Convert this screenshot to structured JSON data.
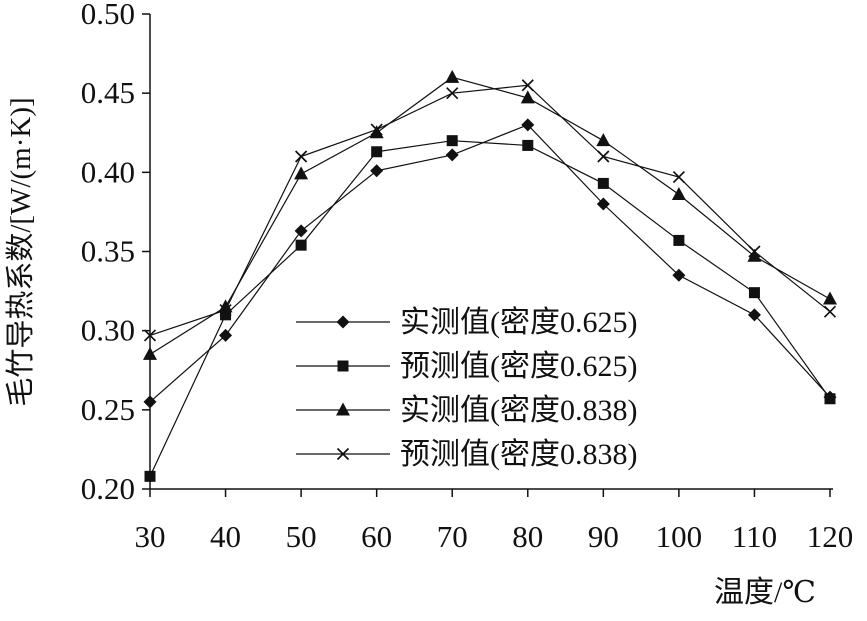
{
  "chart_data": {
    "type": "line",
    "title": "",
    "xlabel": "温度/℃",
    "ylabel": "毛竹导热系数/[W/(m·K)]",
    "x": [
      30,
      40,
      50,
      60,
      70,
      80,
      90,
      100,
      110,
      120
    ],
    "xlim": [
      30,
      120
    ],
    "ylim": [
      0.2,
      0.5
    ],
    "xticks": [
      30,
      40,
      50,
      60,
      70,
      80,
      90,
      100,
      110,
      120
    ],
    "yticks": [
      0.2,
      0.25,
      0.3,
      0.35,
      0.4,
      0.45,
      0.5
    ],
    "grid": false,
    "legend_position": "center-inside",
    "line_color": "#111111",
    "series": [
      {
        "name": "实测值(密度0.625)",
        "marker": "diamond",
        "values": [
          0.255,
          0.297,
          0.363,
          0.401,
          0.411,
          0.43,
          0.38,
          0.335,
          0.31,
          0.258
        ]
      },
      {
        "name": "预测值(密度0.625)",
        "marker": "square",
        "values": [
          0.208,
          0.31,
          0.354,
          0.413,
          0.42,
          0.417,
          0.393,
          0.357,
          0.324,
          0.257
        ]
      },
      {
        "name": "实测值(密度0.838)",
        "marker": "triangle",
        "values": [
          0.285,
          0.315,
          0.399,
          0.425,
          0.46,
          0.447,
          0.42,
          0.386,
          0.347,
          0.32
        ]
      },
      {
        "name": "预测值(密度0.838)",
        "marker": "x",
        "values": [
          0.297,
          0.313,
          0.41,
          0.427,
          0.45,
          0.455,
          0.41,
          0.397,
          0.35,
          0.312
        ]
      }
    ]
  }
}
